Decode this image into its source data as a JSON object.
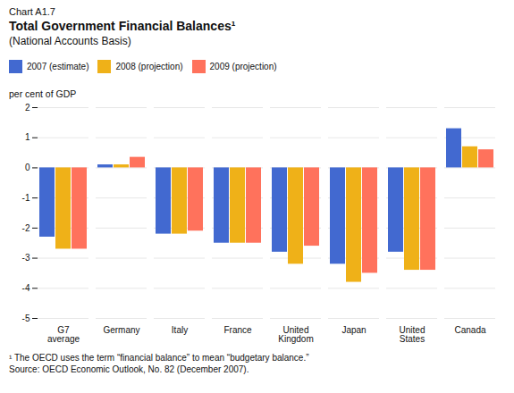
{
  "chart_data": {
    "type": "bar",
    "title": "Total Government Financial Balances¹",
    "subtitle": "(National Accounts Basis)",
    "ylabel": "per cent of GDP",
    "annotations": [
      "Chart A1.7",
      "¹ The OECD uses the term “financial balance” to mean “budgetary balance.”",
      "Source: OECD Economic Outlook, No. 82 (December 2007)."
    ],
    "categories": [
      "G7\naverage",
      "Germany",
      "Italy",
      "France",
      "United\nKingdom",
      "Japan",
      "United\nStates",
      "Canada"
    ],
    "series": [
      {
        "name": "2007 (estimate)",
        "values": [
          -2.3,
          0.1,
          -2.2,
          -2.5,
          -2.8,
          -3.2,
          -2.8,
          1.3
        ]
      },
      {
        "name": "2008 (projection)",
        "values": [
          -2.7,
          0.1,
          -2.2,
          -2.5,
          -3.2,
          -3.8,
          -3.4,
          0.7
        ]
      },
      {
        "name": "2009 (projection)",
        "values": [
          -2.7,
          0.35,
          -2.1,
          -2.5,
          -2.6,
          -3.5,
          -3.4,
          0.6
        ]
      }
    ],
    "ylim": [
      -5,
      2
    ],
    "yticks": [
      -5,
      -4,
      -3,
      -2,
      -1,
      0,
      1,
      2
    ],
    "grid": true,
    "legend": "upper left"
  }
}
